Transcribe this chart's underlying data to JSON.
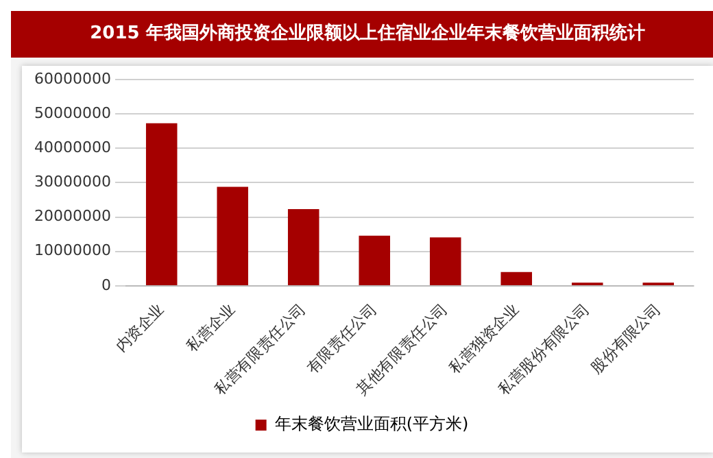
{
  "chart_data": {
    "type": "bar",
    "title": "2015 年我国外商投资企业限额以上住宿业企业年末餐饮营业面积统计",
    "categories": [
      "内资企业",
      "私营企业",
      "私营有限责任公司",
      "有限责任公司",
      "其他有限责任公司",
      "私营独资企业",
      "私营股份有限公司",
      "股份有限公司"
    ],
    "series": [
      {
        "name": "年末餐饮营业面积(平方米)",
        "color": "#a50000",
        "values": [
          47300000,
          28800000,
          22300000,
          14600000,
          14100000,
          4000000,
          900000,
          900000
        ]
      }
    ],
    "ylim": [
      0,
      60000000
    ],
    "yticks": [
      0,
      10000000,
      20000000,
      30000000,
      40000000,
      50000000,
      60000000
    ],
    "grid": "y",
    "legend": "bottom"
  }
}
